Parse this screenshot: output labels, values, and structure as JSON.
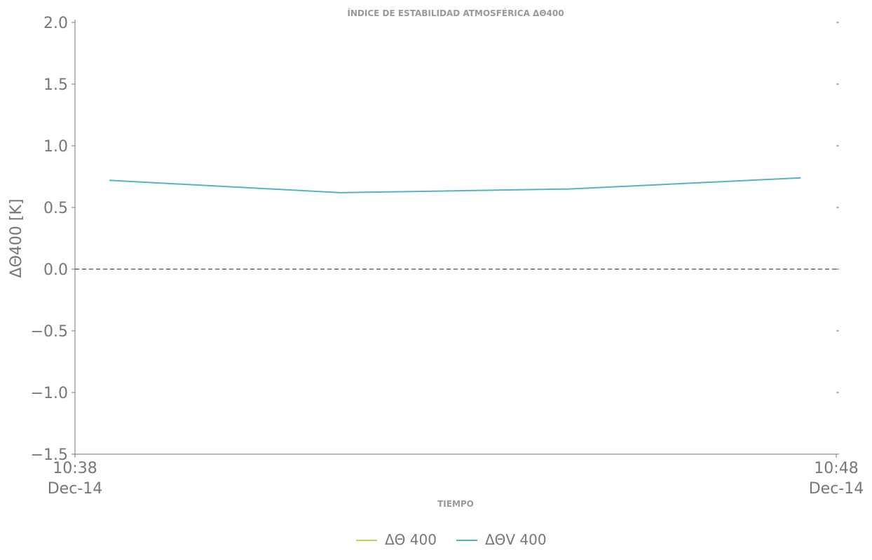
{
  "chart_data": {
    "type": "line",
    "title": "ÍNDICE DE ESTABILIDAD ATMOSFÉRICA ΔΘ400",
    "x_label": "TIEMPO",
    "y_label": "ΔΘ400 [K]",
    "x": [
      "10:38:27",
      "10:41:29",
      "10:44:30",
      "10:47:32"
    ],
    "series": [
      {
        "name": "ΔΘ 400",
        "color": "#c5d35c",
        "values": [
          null,
          null,
          null,
          null
        ]
      },
      {
        "name": "ΔΘV 400",
        "color": "#56b3c2",
        "values": [
          0.72,
          0.62,
          0.65,
          0.74
        ]
      }
    ],
    "xlim": [
      "10:38:00",
      "10:48:00"
    ],
    "xticks": [
      {
        "value": "10:38:00",
        "label": "10:38\nDec-14"
      },
      {
        "value": "10:48:00",
        "label": "10:48\nDec-14"
      }
    ],
    "ylim": [
      -1.5,
      2
    ],
    "yticks": [
      {
        "value": -1.5,
        "label": "−1.5"
      },
      {
        "value": -1,
        "label": "−1.0"
      },
      {
        "value": -0.5,
        "label": "−0.5"
      },
      {
        "value": 0,
        "label": "0.0"
      },
      {
        "value": 0.5,
        "label": "0.5"
      },
      {
        "value": 1,
        "label": "1.0"
      },
      {
        "value": 1.5,
        "label": "1.5"
      },
      {
        "value": 2,
        "label": "2.0"
      }
    ],
    "reference_line": 0,
    "grid": false,
    "legend": "bottom"
  }
}
